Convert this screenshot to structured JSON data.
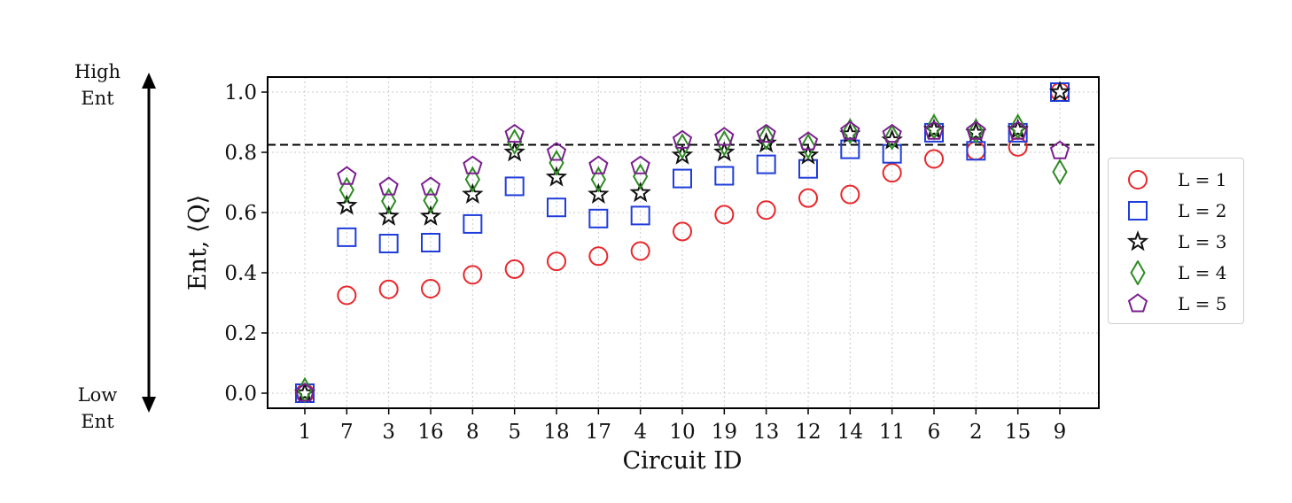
{
  "side_labels": {
    "top": [
      "High",
      "Ent"
    ],
    "bottom": [
      "Low",
      "Ent"
    ]
  },
  "chart_data": {
    "type": "scatter",
    "categories": [
      "1",
      "7",
      "3",
      "16",
      "8",
      "5",
      "18",
      "17",
      "4",
      "10",
      "19",
      "13",
      "12",
      "14",
      "11",
      "6",
      "2",
      "15",
      "9"
    ],
    "xlabel": "Circuit ID",
    "ylabel": "Ent, ⟨Q⟩",
    "ylim": [
      -0.05,
      1.05
    ],
    "yticks": [
      0.0,
      0.2,
      0.4,
      0.6,
      0.8,
      1.0
    ],
    "grid": true,
    "reference_line": {
      "y": 0.825,
      "style": "dashed"
    },
    "legend_position": "right",
    "series": [
      {
        "name": "L = 1",
        "marker": "circle",
        "color": "#e8272b",
        "values": [
          0.0,
          0.325,
          0.345,
          0.347,
          0.393,
          0.412,
          0.438,
          0.455,
          0.472,
          0.537,
          0.593,
          0.608,
          0.648,
          0.66,
          0.732,
          0.778,
          0.805,
          0.818,
          1.0
        ]
      },
      {
        "name": "L = 2",
        "marker": "square",
        "color": "#1f3ddb",
        "values": [
          0.0,
          0.518,
          0.497,
          0.5,
          0.562,
          0.687,
          0.617,
          0.58,
          0.59,
          0.713,
          0.722,
          0.76,
          0.745,
          0.81,
          0.795,
          0.865,
          0.805,
          0.865,
          1.0
        ]
      },
      {
        "name": "L = 3",
        "marker": "star",
        "color": "#111111",
        "values": [
          0.0,
          0.623,
          0.587,
          0.587,
          0.66,
          0.8,
          0.717,
          0.66,
          0.665,
          0.79,
          0.8,
          0.83,
          0.79,
          0.86,
          0.84,
          0.875,
          0.865,
          0.875,
          1.0
        ]
      },
      {
        "name": "L = 4",
        "marker": "diamond",
        "color": "#2e8b22",
        "values": [
          0.01,
          0.675,
          0.638,
          0.64,
          0.71,
          0.835,
          0.765,
          0.71,
          0.72,
          0.82,
          0.83,
          0.85,
          0.82,
          0.87,
          0.85,
          0.885,
          0.87,
          0.885,
          0.735
        ]
      },
      {
        "name": "L = 5",
        "marker": "pentagon",
        "color": "#7a1f8f",
        "values": [
          0.0,
          0.72,
          0.685,
          0.685,
          0.755,
          0.86,
          0.8,
          0.755,
          0.755,
          0.84,
          0.85,
          0.86,
          0.835,
          0.87,
          0.86,
          0.87,
          0.87,
          0.87,
          0.805
        ]
      }
    ]
  }
}
